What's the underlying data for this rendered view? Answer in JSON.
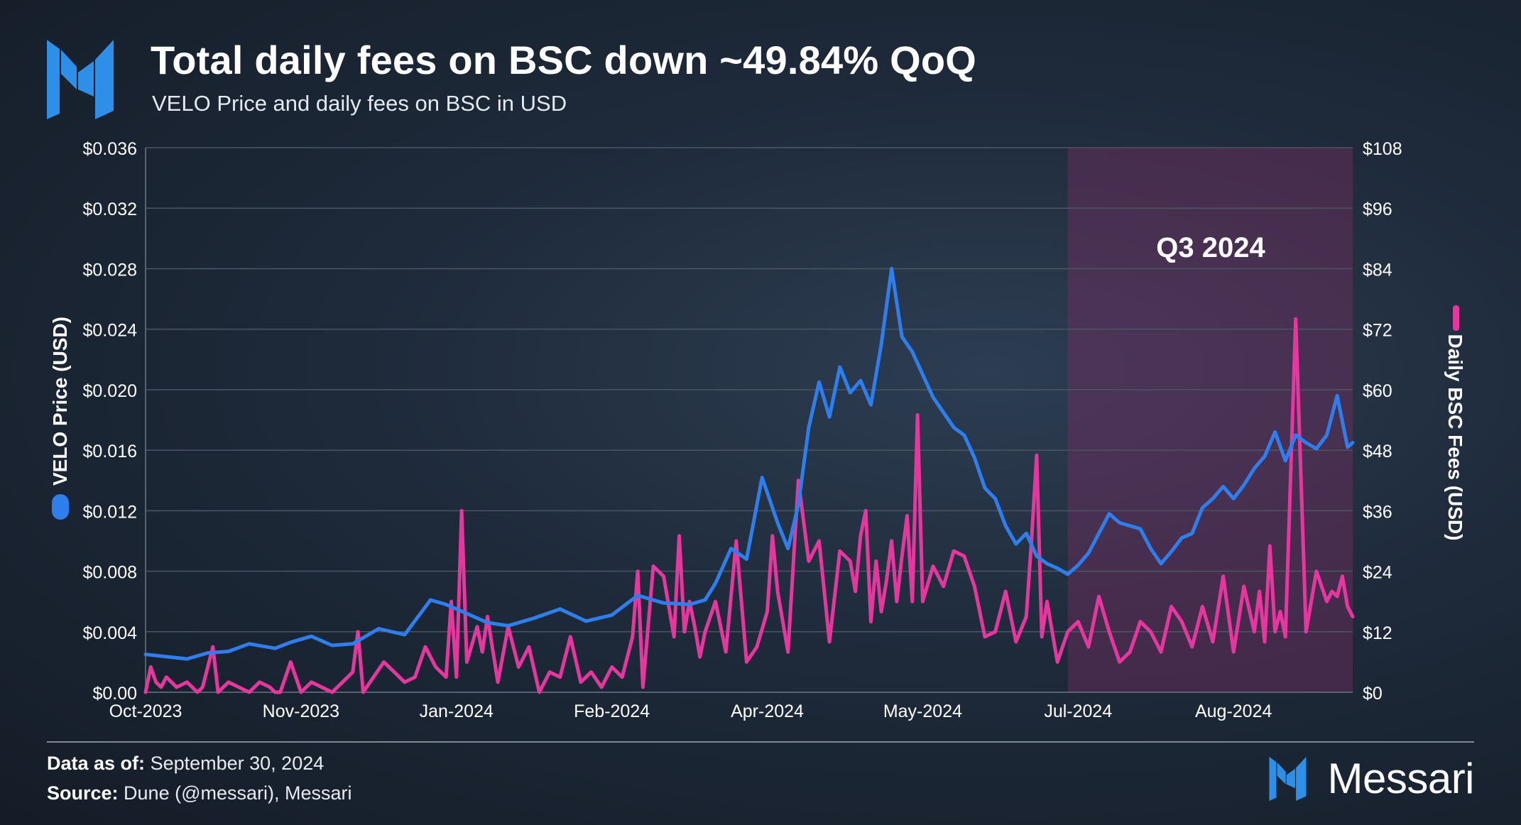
{
  "header": {
    "title": "Total daily fees on BSC down ~49.84% QoQ",
    "subtitle": "VELO Price and daily fees on BSC in USD"
  },
  "footer": {
    "date_label": "Data as of:",
    "date_value": "September 30, 2024",
    "source_label": "Source:",
    "source_value": "Dune (@messari), Messari",
    "brand": "Messari"
  },
  "colors": {
    "price": "#2e7fed",
    "fees": "#e6379f",
    "highlight": "#7a2e63"
  },
  "chart_data": {
    "type": "line",
    "title": "Total daily fees on BSC down ~49.84% QoQ",
    "subtitle": "VELO Price and daily fees on BSC in USD",
    "x_range": [
      "2023-10-01",
      "2024-09-30"
    ],
    "xticks": [
      "Oct-2023",
      "Nov-2023",
      "Jan-2024",
      "Feb-2024",
      "Apr-2024",
      "May-2024",
      "Jul-2024",
      "Aug-2024"
    ],
    "xtick_positions_days": [
      0,
      30,
      60,
      90,
      120,
      150,
      180,
      210
    ],
    "xlim_days": [
      0,
      233
    ],
    "y_left": {
      "label": "VELO Price (USD)",
      "range": [
        0,
        0.036
      ],
      "ticks": [
        "$0.00",
        "$0.004",
        "$0.008",
        "$0.012",
        "$0.016",
        "$0.020",
        "$0.024",
        "$0.028",
        "$0.032",
        "$0.036"
      ]
    },
    "y_right": {
      "label": "Daily BSC Fees (USD)",
      "range": [
        0,
        108
      ],
      "ticks": [
        "$0",
        "$12",
        "$24",
        "$36",
        "$48",
        "$60",
        "$72",
        "$84",
        "$96",
        "$108"
      ]
    },
    "annotation": {
      "label": "Q3 2024",
      "start_day": 178,
      "end_day": 233
    },
    "series": [
      {
        "name": "VELO Price (USD)",
        "axis": "left",
        "x": [
          0,
          8,
          12,
          16,
          20,
          25,
          28,
          32,
          36,
          40,
          45,
          50,
          55,
          58,
          62,
          66,
          70,
          75,
          80,
          85,
          90,
          95,
          100,
          105,
          108,
          110,
          113,
          116,
          119,
          122,
          124,
          126,
          128,
          130,
          132,
          134,
          136,
          138,
          140,
          142,
          144,
          146,
          148,
          150,
          152,
          154,
          156,
          158,
          160,
          162,
          164,
          166,
          168,
          170,
          172,
          174,
          176,
          178,
          180,
          182,
          184,
          186,
          188,
          190,
          192,
          194,
          196,
          198,
          200,
          202,
          204,
          206,
          208,
          210,
          212,
          214,
          216,
          218,
          220,
          222,
          224,
          226,
          228,
          230,
          232,
          233
        ],
        "values": [
          0.0025,
          0.0022,
          0.0026,
          0.0027,
          0.0032,
          0.0029,
          0.0033,
          0.0037,
          0.0031,
          0.0032,
          0.0042,
          0.0038,
          0.0061,
          0.0058,
          0.0052,
          0.0046,
          0.0044,
          0.0049,
          0.0055,
          0.0047,
          0.0051,
          0.0064,
          0.0059,
          0.0058,
          0.0061,
          0.0072,
          0.0095,
          0.0088,
          0.0142,
          0.0112,
          0.0095,
          0.0124,
          0.0175,
          0.0205,
          0.0182,
          0.0215,
          0.0198,
          0.0206,
          0.019,
          0.023,
          0.028,
          0.0235,
          0.0225,
          0.021,
          0.0195,
          0.0185,
          0.0175,
          0.017,
          0.0155,
          0.0135,
          0.0128,
          0.011,
          0.0098,
          0.0105,
          0.009,
          0.0085,
          0.0082,
          0.0078,
          0.0084,
          0.0092,
          0.0105,
          0.0118,
          0.0112,
          0.011,
          0.0108,
          0.0095,
          0.0085,
          0.0093,
          0.0102,
          0.0105,
          0.0122,
          0.0128,
          0.0136,
          0.0128,
          0.0137,
          0.0148,
          0.0156,
          0.0172,
          0.0153,
          0.017,
          0.0165,
          0.0161,
          0.017,
          0.0196,
          0.0162,
          0.0165
        ]
      },
      {
        "name": "Daily BSC Fees (USD)",
        "axis": "right",
        "x": [
          0,
          1,
          2,
          3,
          4,
          6,
          8,
          10,
          11,
          12,
          13,
          14,
          16,
          18,
          20,
          22,
          24,
          25,
          26,
          28,
          30,
          32,
          34,
          36,
          38,
          40,
          41,
          42,
          44,
          46,
          48,
          50,
          52,
          54,
          56,
          58,
          59,
          60,
          61,
          62,
          64,
          65,
          66,
          68,
          70,
          72,
          74,
          76,
          78,
          80,
          82,
          84,
          86,
          88,
          90,
          92,
          94,
          95,
          96,
          98,
          100,
          102,
          103,
          104,
          105,
          106,
          107,
          108,
          110,
          112,
          114,
          116,
          118,
          120,
          121,
          122,
          124,
          126,
          128,
          130,
          132,
          134,
          136,
          137,
          138,
          139,
          140,
          141,
          142,
          143,
          144,
          145,
          146,
          147,
          148,
          149,
          150,
          152,
          154,
          156,
          158,
          160,
          162,
          164,
          166,
          168,
          170,
          171,
          172,
          173,
          174,
          176,
          178,
          180,
          182,
          184,
          186,
          188,
          190,
          192,
          194,
          196,
          198,
          200,
          202,
          204,
          206,
          208,
          210,
          212,
          214,
          215,
          216,
          217,
          218,
          219,
          220,
          222,
          224,
          226,
          228,
          229,
          230,
          231,
          232,
          233
        ],
        "values": [
          0,
          5,
          2,
          1,
          3,
          1,
          2,
          0,
          1,
          5,
          9,
          0,
          2,
          1,
          0,
          2,
          1,
          0,
          0,
          6,
          0,
          2,
          1,
          0,
          2,
          4,
          12,
          0,
          3,
          6,
          4,
          2,
          3,
          9,
          5,
          3,
          18,
          3,
          36,
          6,
          13,
          8,
          15,
          2,
          13,
          5,
          9,
          0,
          4,
          3,
          11,
          2,
          4,
          1,
          5,
          3,
          11,
          24,
          1,
          25,
          23,
          11,
          31,
          12,
          18,
          13,
          7,
          12,
          18,
          8,
          30,
          6,
          9,
          16,
          31,
          20,
          8,
          42,
          26,
          30,
          10,
          28,
          26,
          20,
          31,
          36,
          14,
          26,
          16,
          22,
          30,
          18,
          27,
          35,
          18,
          55,
          18,
          25,
          21,
          28,
          27,
          21,
          11,
          12,
          20,
          10,
          15,
          30,
          47,
          11,
          18,
          6,
          12,
          14,
          9,
          19,
          12,
          6,
          8,
          14,
          12,
          8,
          17,
          14,
          9,
          17,
          10,
          23,
          8,
          21,
          12,
          20,
          10,
          29,
          12,
          16,
          11,
          74,
          12,
          24,
          18,
          20,
          19,
          23,
          17,
          15
        ]
      }
    ]
  }
}
